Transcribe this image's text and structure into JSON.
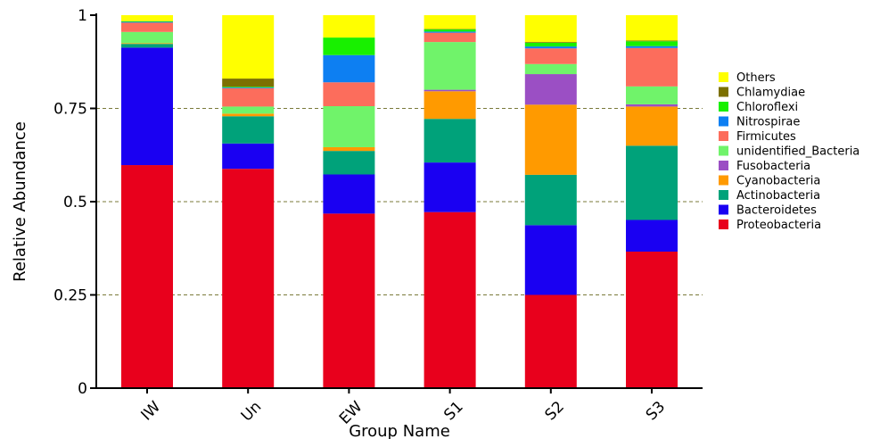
{
  "chart_data": {
    "type": "bar",
    "stacked": true,
    "title": "",
    "xlabel": "Group Name",
    "ylabel": "Relative Abundance",
    "ylim": [
      0,
      1
    ],
    "yticks": [
      0,
      0.25,
      0.5,
      0.75,
      1
    ],
    "ytick_labels": [
      "0",
      "0.25",
      "0.5",
      "0.75",
      "1"
    ],
    "grid": "horizontal dashed at 0.25, 0.5, 0.75",
    "legend_position": "right",
    "categories": [
      "IW",
      "Un",
      "EW",
      "S1",
      "S2",
      "S3"
    ],
    "series": [
      {
        "name": "Proteobacteria",
        "color": "#e8001c",
        "values": [
          0.598,
          0.588,
          0.468,
          0.472,
          0.25,
          0.366
        ]
      },
      {
        "name": "Bacteroidetes",
        "color": "#1a00f2",
        "values": [
          0.315,
          0.068,
          0.105,
          0.133,
          0.187,
          0.085
        ]
      },
      {
        "name": "Actinobacteria",
        "color": "#00a27a",
        "values": [
          0.01,
          0.073,
          0.063,
          0.117,
          0.135,
          0.199
        ]
      },
      {
        "name": "Cyanobacteria",
        "color": "#ff9a00",
        "values": [
          0.002,
          0.007,
          0.01,
          0.074,
          0.188,
          0.105
        ]
      },
      {
        "name": "Fusobacteria",
        "color": "#9b4fc4",
        "values": [
          0.0,
          0.0,
          0.0,
          0.004,
          0.082,
          0.006
        ]
      },
      {
        "name": "unidentified_Bacteria",
        "color": "#70f36a",
        "values": [
          0.03,
          0.019,
          0.11,
          0.128,
          0.027,
          0.048
        ]
      },
      {
        "name": "Firmicutes",
        "color": "#fc6d5c",
        "values": [
          0.025,
          0.049,
          0.064,
          0.025,
          0.042,
          0.103
        ]
      },
      {
        "name": "Nitrospirae",
        "color": "#0d7ff2",
        "values": [
          0.002,
          0.002,
          0.073,
          0.003,
          0.005,
          0.005
        ]
      },
      {
        "name": "Chloroflexi",
        "color": "#18f000",
        "values": [
          0.002,
          0.002,
          0.047,
          0.006,
          0.01,
          0.013
        ]
      },
      {
        "name": "Chlamydiae",
        "color": "#7c7000",
        "values": [
          0.0,
          0.022,
          0.0,
          0.001,
          0.002,
          0.002
        ]
      },
      {
        "name": "Others",
        "color": "#ffff00",
        "values": [
          0.016,
          0.17,
          0.06,
          0.037,
          0.072,
          0.068
        ]
      }
    ]
  }
}
